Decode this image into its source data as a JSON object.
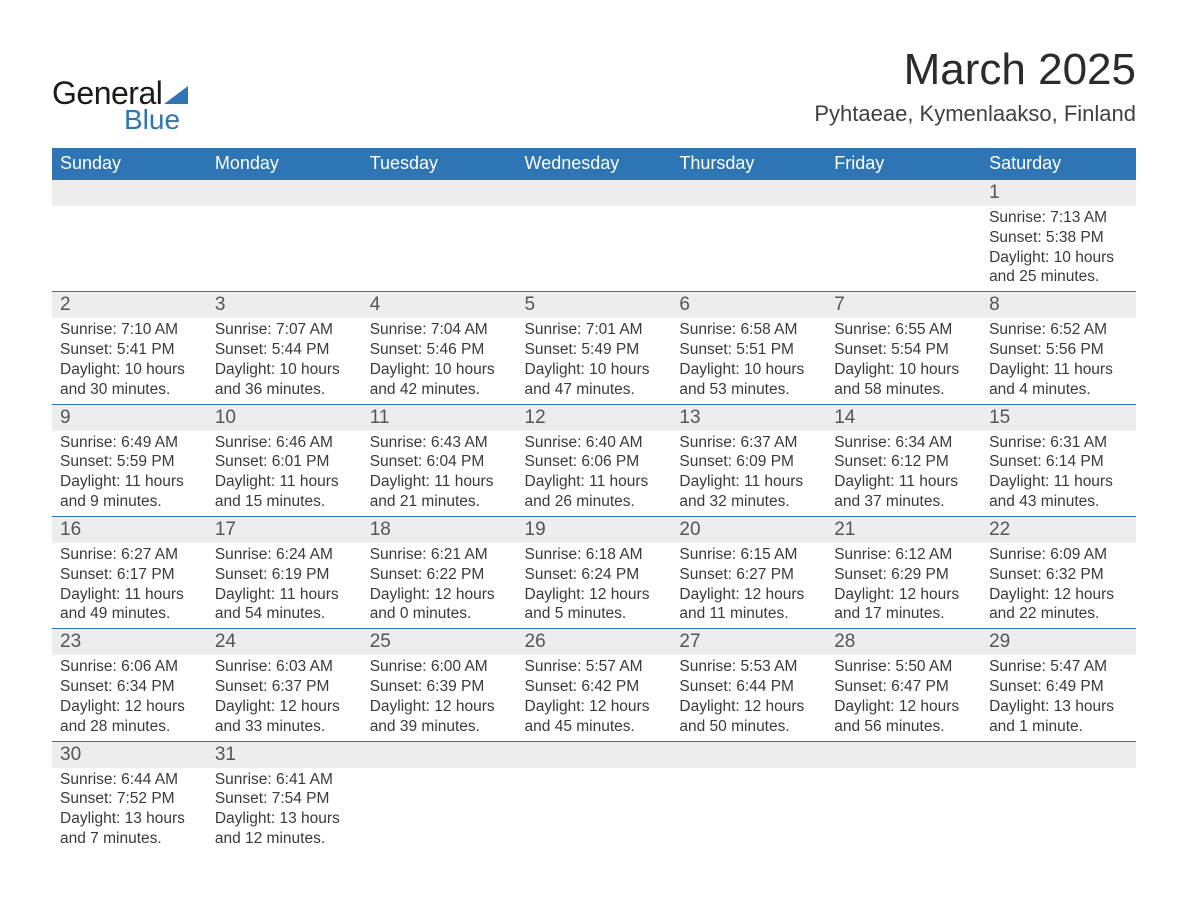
{
  "logo": {
    "word1": "General",
    "word2": "Blue",
    "tri_color": "#2e75b6",
    "text_color": "#1a1a1a"
  },
  "title": "March 2025",
  "location": "Pyhtaeae, Kymenlaakso, Finland",
  "colors": {
    "header_bg": "#2e75b6",
    "header_text": "#ffffff",
    "daynum_bg": "#ededed",
    "row_separator": "#2e75b6",
    "body_text": "#3a3a3a"
  },
  "fonts": {
    "title_pt": 44,
    "location_pt": 22,
    "header_pt": 18,
    "daynum_pt": 19,
    "detail_pt": 15.5
  },
  "weekdays": [
    "Sunday",
    "Monday",
    "Tuesday",
    "Wednesday",
    "Thursday",
    "Friday",
    "Saturday"
  ],
  "weeks": [
    [
      null,
      null,
      null,
      null,
      null,
      null,
      {
        "n": "1",
        "sunrise": "Sunrise: 7:13 AM",
        "sunset": "Sunset: 5:38 PM",
        "day1": "Daylight: 10 hours",
        "day2": "and 25 minutes."
      }
    ],
    [
      {
        "n": "2",
        "sunrise": "Sunrise: 7:10 AM",
        "sunset": "Sunset: 5:41 PM",
        "day1": "Daylight: 10 hours",
        "day2": "and 30 minutes."
      },
      {
        "n": "3",
        "sunrise": "Sunrise: 7:07 AM",
        "sunset": "Sunset: 5:44 PM",
        "day1": "Daylight: 10 hours",
        "day2": "and 36 minutes."
      },
      {
        "n": "4",
        "sunrise": "Sunrise: 7:04 AM",
        "sunset": "Sunset: 5:46 PM",
        "day1": "Daylight: 10 hours",
        "day2": "and 42 minutes."
      },
      {
        "n": "5",
        "sunrise": "Sunrise: 7:01 AM",
        "sunset": "Sunset: 5:49 PM",
        "day1": "Daylight: 10 hours",
        "day2": "and 47 minutes."
      },
      {
        "n": "6",
        "sunrise": "Sunrise: 6:58 AM",
        "sunset": "Sunset: 5:51 PM",
        "day1": "Daylight: 10 hours",
        "day2": "and 53 minutes."
      },
      {
        "n": "7",
        "sunrise": "Sunrise: 6:55 AM",
        "sunset": "Sunset: 5:54 PM",
        "day1": "Daylight: 10 hours",
        "day2": "and 58 minutes."
      },
      {
        "n": "8",
        "sunrise": "Sunrise: 6:52 AM",
        "sunset": "Sunset: 5:56 PM",
        "day1": "Daylight: 11 hours",
        "day2": "and 4 minutes."
      }
    ],
    [
      {
        "n": "9",
        "sunrise": "Sunrise: 6:49 AM",
        "sunset": "Sunset: 5:59 PM",
        "day1": "Daylight: 11 hours",
        "day2": "and 9 minutes."
      },
      {
        "n": "10",
        "sunrise": "Sunrise: 6:46 AM",
        "sunset": "Sunset: 6:01 PM",
        "day1": "Daylight: 11 hours",
        "day2": "and 15 minutes."
      },
      {
        "n": "11",
        "sunrise": "Sunrise: 6:43 AM",
        "sunset": "Sunset: 6:04 PM",
        "day1": "Daylight: 11 hours",
        "day2": "and 21 minutes."
      },
      {
        "n": "12",
        "sunrise": "Sunrise: 6:40 AM",
        "sunset": "Sunset: 6:06 PM",
        "day1": "Daylight: 11 hours",
        "day2": "and 26 minutes."
      },
      {
        "n": "13",
        "sunrise": "Sunrise: 6:37 AM",
        "sunset": "Sunset: 6:09 PM",
        "day1": "Daylight: 11 hours",
        "day2": "and 32 minutes."
      },
      {
        "n": "14",
        "sunrise": "Sunrise: 6:34 AM",
        "sunset": "Sunset: 6:12 PM",
        "day1": "Daylight: 11 hours",
        "day2": "and 37 minutes."
      },
      {
        "n": "15",
        "sunrise": "Sunrise: 6:31 AM",
        "sunset": "Sunset: 6:14 PM",
        "day1": "Daylight: 11 hours",
        "day2": "and 43 minutes."
      }
    ],
    [
      {
        "n": "16",
        "sunrise": "Sunrise: 6:27 AM",
        "sunset": "Sunset: 6:17 PM",
        "day1": "Daylight: 11 hours",
        "day2": "and 49 minutes."
      },
      {
        "n": "17",
        "sunrise": "Sunrise: 6:24 AM",
        "sunset": "Sunset: 6:19 PM",
        "day1": "Daylight: 11 hours",
        "day2": "and 54 minutes."
      },
      {
        "n": "18",
        "sunrise": "Sunrise: 6:21 AM",
        "sunset": "Sunset: 6:22 PM",
        "day1": "Daylight: 12 hours",
        "day2": "and 0 minutes."
      },
      {
        "n": "19",
        "sunrise": "Sunrise: 6:18 AM",
        "sunset": "Sunset: 6:24 PM",
        "day1": "Daylight: 12 hours",
        "day2": "and 5 minutes."
      },
      {
        "n": "20",
        "sunrise": "Sunrise: 6:15 AM",
        "sunset": "Sunset: 6:27 PM",
        "day1": "Daylight: 12 hours",
        "day2": "and 11 minutes."
      },
      {
        "n": "21",
        "sunrise": "Sunrise: 6:12 AM",
        "sunset": "Sunset: 6:29 PM",
        "day1": "Daylight: 12 hours",
        "day2": "and 17 minutes."
      },
      {
        "n": "22",
        "sunrise": "Sunrise: 6:09 AM",
        "sunset": "Sunset: 6:32 PM",
        "day1": "Daylight: 12 hours",
        "day2": "and 22 minutes."
      }
    ],
    [
      {
        "n": "23",
        "sunrise": "Sunrise: 6:06 AM",
        "sunset": "Sunset: 6:34 PM",
        "day1": "Daylight: 12 hours",
        "day2": "and 28 minutes."
      },
      {
        "n": "24",
        "sunrise": "Sunrise: 6:03 AM",
        "sunset": "Sunset: 6:37 PM",
        "day1": "Daylight: 12 hours",
        "day2": "and 33 minutes."
      },
      {
        "n": "25",
        "sunrise": "Sunrise: 6:00 AM",
        "sunset": "Sunset: 6:39 PM",
        "day1": "Daylight: 12 hours",
        "day2": "and 39 minutes."
      },
      {
        "n": "26",
        "sunrise": "Sunrise: 5:57 AM",
        "sunset": "Sunset: 6:42 PM",
        "day1": "Daylight: 12 hours",
        "day2": "and 45 minutes."
      },
      {
        "n": "27",
        "sunrise": "Sunrise: 5:53 AM",
        "sunset": "Sunset: 6:44 PM",
        "day1": "Daylight: 12 hours",
        "day2": "and 50 minutes."
      },
      {
        "n": "28",
        "sunrise": "Sunrise: 5:50 AM",
        "sunset": "Sunset: 6:47 PM",
        "day1": "Daylight: 12 hours",
        "day2": "and 56 minutes."
      },
      {
        "n": "29",
        "sunrise": "Sunrise: 5:47 AM",
        "sunset": "Sunset: 6:49 PM",
        "day1": "Daylight: 13 hours",
        "day2": "and 1 minute."
      }
    ],
    [
      {
        "n": "30",
        "sunrise": "Sunrise: 6:44 AM",
        "sunset": "Sunset: 7:52 PM",
        "day1": "Daylight: 13 hours",
        "day2": "and 7 minutes."
      },
      {
        "n": "31",
        "sunrise": "Sunrise: 6:41 AM",
        "sunset": "Sunset: 7:54 PM",
        "day1": "Daylight: 13 hours",
        "day2": "and 12 minutes."
      },
      null,
      null,
      null,
      null,
      null
    ]
  ]
}
